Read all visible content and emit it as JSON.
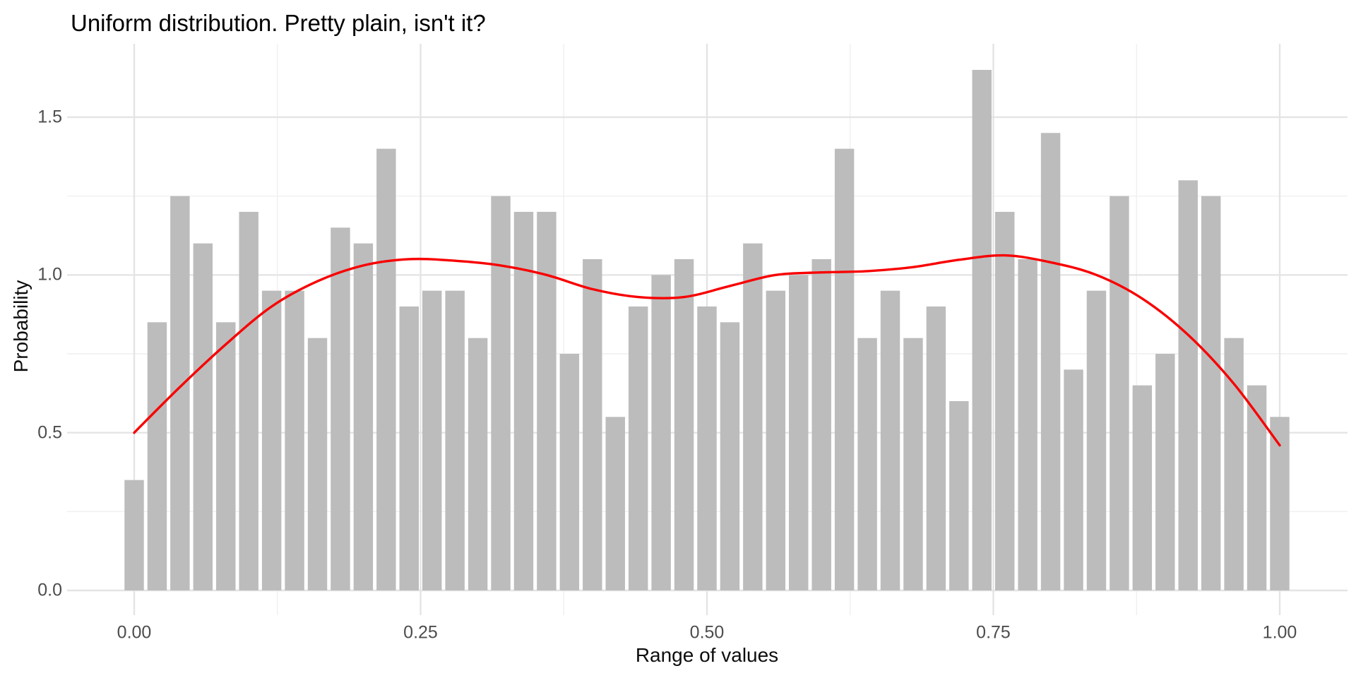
{
  "chart_data": {
    "type": "bar",
    "subtype": "histogram-with-density-line",
    "title": "Uniform distribution. Pretty plain, isn't it?",
    "xlabel": "Range of values",
    "ylabel": "Probability",
    "x_tick_labels": [
      "0.00",
      "0.25",
      "0.50",
      "0.75",
      "1.00"
    ],
    "x_tick_values": [
      0,
      0.25,
      0.5,
      0.75,
      1.0
    ],
    "x_minor_gridlines": [
      0.125,
      0.375,
      0.625,
      0.875
    ],
    "y_tick_labels": [
      "0.0",
      "0.5",
      "1.0",
      "1.5"
    ],
    "y_tick_values": [
      0,
      0.5,
      1.0,
      1.5
    ],
    "y_minor_gridlines": [
      0.25,
      0.75,
      1.25
    ],
    "xlim": [
      -0.061,
      1.061
    ],
    "ylim": [
      -0.08,
      1.73
    ],
    "grid": "on",
    "legend": "none",
    "bin_width": 0.02,
    "bars": {
      "centers": [
        0.0,
        0.02,
        0.04,
        0.06,
        0.08,
        0.1,
        0.12,
        0.14,
        0.16,
        0.18,
        0.2,
        0.22,
        0.24,
        0.26,
        0.28,
        0.3,
        0.32,
        0.34,
        0.36,
        0.38,
        0.4,
        0.42,
        0.44,
        0.46,
        0.48,
        0.5,
        0.52,
        0.54,
        0.56,
        0.58,
        0.6,
        0.62,
        0.64,
        0.66,
        0.68,
        0.7,
        0.72,
        0.74,
        0.76,
        0.78,
        0.8,
        0.82,
        0.84,
        0.86,
        0.88,
        0.9,
        0.92,
        0.94,
        0.96,
        0.98,
        1.0
      ],
      "heights": [
        0.35,
        0.85,
        1.25,
        1.1,
        0.85,
        1.2,
        0.95,
        0.95,
        0.8,
        1.15,
        1.1,
        1.4,
        0.9,
        0.95,
        0.95,
        0.8,
        1.25,
        1.2,
        1.2,
        0.75,
        1.05,
        0.55,
        0.9,
        1.0,
        1.05,
        0.9,
        0.85,
        1.1,
        0.95,
        1.0,
        1.05,
        1.4,
        0.8,
        0.95,
        0.8,
        0.9,
        0.6,
        1.65,
        1.2,
        1.05,
        1.45,
        0.7,
        0.95,
        1.25,
        0.65,
        0.75,
        1.3,
        1.25,
        0.8,
        0.65,
        0.55
      ]
    },
    "density_line": {
      "x": [
        0.0,
        0.04,
        0.08,
        0.12,
        0.16,
        0.2,
        0.24,
        0.28,
        0.32,
        0.36,
        0.4,
        0.44,
        0.48,
        0.52,
        0.56,
        0.6,
        0.64,
        0.68,
        0.72,
        0.76,
        0.8,
        0.84,
        0.88,
        0.92,
        0.96,
        1.0
      ],
      "y": [
        0.5,
        0.645,
        0.78,
        0.9,
        0.98,
        1.03,
        1.05,
        1.045,
        1.03,
        1.0,
        0.955,
        0.93,
        0.93,
        0.965,
        1.0,
        1.008,
        1.012,
        1.025,
        1.048,
        1.062,
        1.04,
        1.0,
        0.925,
        0.81,
        0.655,
        0.46
      ]
    },
    "colors": {
      "bar_fill": "#bcbcbc",
      "bar_gap": "#ffffff",
      "density_line": "#f80000",
      "grid_major": "#e4e4e4",
      "grid_minor": "#f1f1f1",
      "tick_text": "#4d4d4d",
      "axis_title_text": "#0d0d0d",
      "title_text": "#000000",
      "background": "#ffffff"
    }
  }
}
